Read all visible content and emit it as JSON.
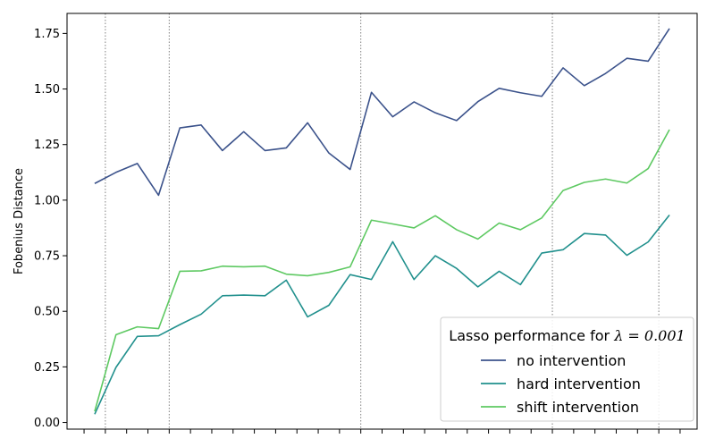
{
  "chart_data": {
    "type": "line",
    "title": "",
    "xlabel": "",
    "ylabel": "Fobenius Distance",
    "ylim": [
      -0.03,
      1.84
    ],
    "yticks": [
      0.0,
      0.25,
      0.5,
      0.75,
      1.0,
      1.25,
      1.5,
      1.75
    ],
    "ytick_labels": [
      "0.00",
      "0.25",
      "0.50",
      "0.75",
      "1.00",
      "1.25",
      "1.50",
      "1.75"
    ],
    "x": [
      0,
      1,
      2,
      3,
      4,
      5,
      6,
      7,
      8,
      9,
      10,
      11,
      12,
      13,
      14,
      15,
      16,
      17,
      18,
      19,
      20,
      21,
      22,
      23,
      24,
      25,
      26,
      27
    ],
    "xlim": [
      -1.3,
      28.3
    ],
    "xtick_positions": [
      -0.5,
      0.5,
      1.5,
      2.5,
      3.5,
      4.5,
      5.5,
      6.5,
      7.5,
      8.5,
      9.5,
      10.5,
      11.5,
      12.5,
      13.5,
      14.5,
      15.5,
      16.5,
      17.5,
      18.5,
      19.5,
      20.5,
      21.5,
      22.5,
      23.5,
      24.5,
      25.5,
      26.5,
      27.5
    ],
    "vlines": [
      0.5,
      3.5,
      12.5,
      21.5,
      26.5
    ],
    "grid": false,
    "legend": {
      "title": "Lasso performance for λ = 0.001",
      "title_prefix": "Lasso performance for ",
      "title_math": "λ = 0.001",
      "position": "lower-right"
    },
    "series": [
      {
        "name": "no intervention",
        "color": "#3b528b",
        "values": [
          1.075,
          1.125,
          1.165,
          1.022,
          1.325,
          1.338,
          1.223,
          1.308,
          1.223,
          1.235,
          1.348,
          1.212,
          1.138,
          1.485,
          1.375,
          1.442,
          1.393,
          1.358,
          1.443,
          1.503,
          1.483,
          1.467,
          1.595,
          1.515,
          1.57,
          1.638,
          1.625,
          1.772
        ]
      },
      {
        "name": "hard intervention",
        "color": "#21908d",
        "values": [
          0.037,
          0.248,
          0.387,
          0.39,
          0.44,
          0.487,
          0.57,
          0.573,
          0.57,
          0.64,
          0.475,
          0.527,
          0.665,
          0.643,
          0.813,
          0.643,
          0.75,
          0.693,
          0.61,
          0.68,
          0.62,
          0.762,
          0.777,
          0.85,
          0.843,
          0.752,
          0.812,
          0.933
        ]
      },
      {
        "name": "shift intervention",
        "color": "#5ec962",
        "values": [
          0.05,
          0.395,
          0.43,
          0.422,
          0.68,
          0.682,
          0.703,
          0.7,
          0.703,
          0.667,
          0.66,
          0.675,
          0.7,
          0.91,
          0.893,
          0.875,
          0.93,
          0.867,
          0.825,
          0.897,
          0.867,
          0.92,
          1.043,
          1.08,
          1.095,
          1.077,
          1.142,
          1.317
        ]
      }
    ]
  }
}
